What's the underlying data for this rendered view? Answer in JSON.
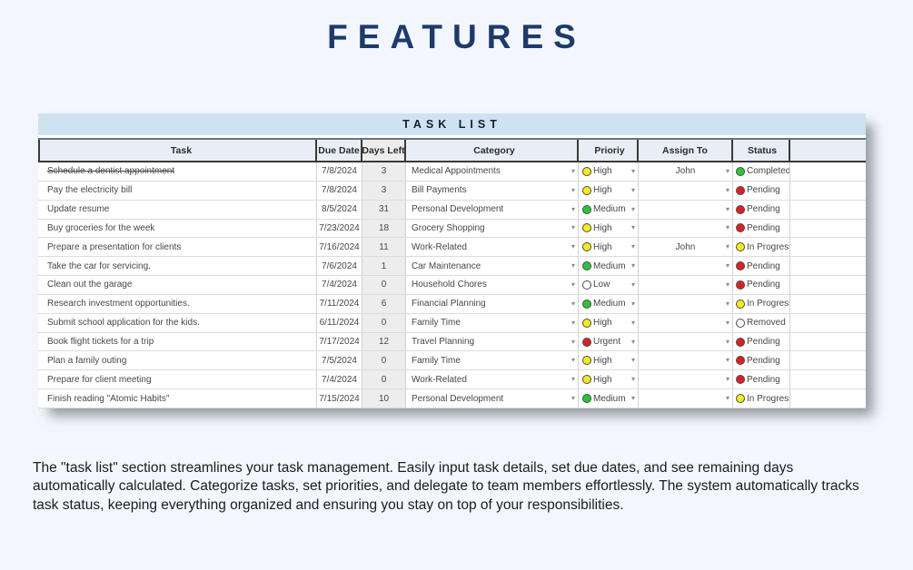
{
  "page": {
    "title": "FEATURES",
    "description": "The \"task list\" section streamlines your task management. Easily input task details, set due dates, and see remaining days automatically calculated. Categorize tasks, set priorities, and delegate to team members effortlessly. The system automatically tracks task status, keeping everything organized and ensuring you stay on top of your responsibilities."
  },
  "icons": {
    "dropdown": "▾"
  },
  "colors": {
    "page_bg": "#f3f6fc",
    "title_text": "#1d3a6b",
    "band_bg": "#cfe2f1",
    "header_bg": "#e9eef6",
    "header_border": "#3a3a3a",
    "days_col_bg": "#ededed",
    "dot_outline": "#4a4a4a",
    "yellow": "#f5ec1b",
    "green": "#2bc53a",
    "red": "#dd2025",
    "white": "#ffffff"
  },
  "table": {
    "band_title": "TASK LIST",
    "columns": [
      "",
      "Task",
      "Due Date",
      "Days Left",
      "Category",
      "Prioriy",
      "Assign To",
      "Status",
      ""
    ],
    "rows": [
      {
        "task": "Schedule a dentist appointment",
        "struck": true,
        "due": "7/8/2024",
        "days": "3",
        "category": "Medical Appointments",
        "priority": "High",
        "priority_color": "yellow",
        "assign": "John",
        "status": "Completed",
        "status_color": "green"
      },
      {
        "task": "Pay the electricity bill",
        "struck": false,
        "due": "7/8/2024",
        "days": "3",
        "category": "Bill Payments",
        "priority": "High",
        "priority_color": "yellow",
        "assign": "",
        "status": "Pending",
        "status_color": "red"
      },
      {
        "task": "Update resume",
        "struck": false,
        "due": "8/5/2024",
        "days": "31",
        "category": "Personal Development",
        "priority": "Medium",
        "priority_color": "green",
        "assign": "",
        "status": "Pending",
        "status_color": "red"
      },
      {
        "task": "Buy groceries for the week",
        "struck": false,
        "due": "7/23/2024",
        "days": "18",
        "category": "Grocery Shopping",
        "priority": "High",
        "priority_color": "yellow",
        "assign": "",
        "status": "Pending",
        "status_color": "red"
      },
      {
        "task": "Prepare a presentation for clients",
        "struck": false,
        "due": "7/16/2024",
        "days": "11",
        "category": "Work-Related",
        "priority": "High",
        "priority_color": "yellow",
        "assign": "John",
        "status": "In Progress",
        "status_color": "yellow"
      },
      {
        "task": "Take the car for servicing.",
        "struck": false,
        "due": "7/6/2024",
        "days": "1",
        "category": "Car Maintenance",
        "priority": "Medium",
        "priority_color": "green",
        "assign": "",
        "status": "Pending",
        "status_color": "red"
      },
      {
        "task": "Clean out the garage",
        "struck": false,
        "due": "7/4/2024",
        "days": "0",
        "category": "Household Chores",
        "priority": "Low",
        "priority_color": "white",
        "assign": "",
        "status": "Pending",
        "status_color": "red"
      },
      {
        "task": "Research investment opportunities.",
        "struck": false,
        "due": "7/11/2024",
        "days": "6",
        "category": "Financial Planning",
        "priority": "Medium",
        "priority_color": "green",
        "assign": "",
        "status": "In Progress",
        "status_color": "yellow"
      },
      {
        "task": "Submit school application for the kids.",
        "struck": false,
        "due": "6/11/2024",
        "days": "0",
        "category": "Family Time",
        "priority": "High",
        "priority_color": "yellow",
        "assign": "",
        "status": "Removed",
        "status_color": "white"
      },
      {
        "task": "Book flight tickets for a trip",
        "struck": false,
        "due": "7/17/2024",
        "days": "12",
        "category": "Travel Planning",
        "priority": "Urgent",
        "priority_color": "red",
        "assign": "",
        "status": "Pending",
        "status_color": "red"
      },
      {
        "task": "Plan a family outing",
        "struck": false,
        "due": "7/5/2024",
        "days": "0",
        "category": "Family Time",
        "priority": "High",
        "priority_color": "yellow",
        "assign": "",
        "status": "Pending",
        "status_color": "red"
      },
      {
        "task": "Prepare for client meeting",
        "struck": false,
        "due": "7/4/2024",
        "days": "0",
        "category": "Work-Related",
        "priority": "High",
        "priority_color": "yellow",
        "assign": "",
        "status": "Pending",
        "status_color": "red"
      },
      {
        "task": "Finish reading \"Atomic Habits\"",
        "struck": false,
        "due": "7/15/2024",
        "days": "10",
        "category": "Personal Development",
        "priority": "Medium",
        "priority_color": "green",
        "assign": "",
        "status": "In Progress",
        "status_color": "yellow"
      }
    ]
  }
}
